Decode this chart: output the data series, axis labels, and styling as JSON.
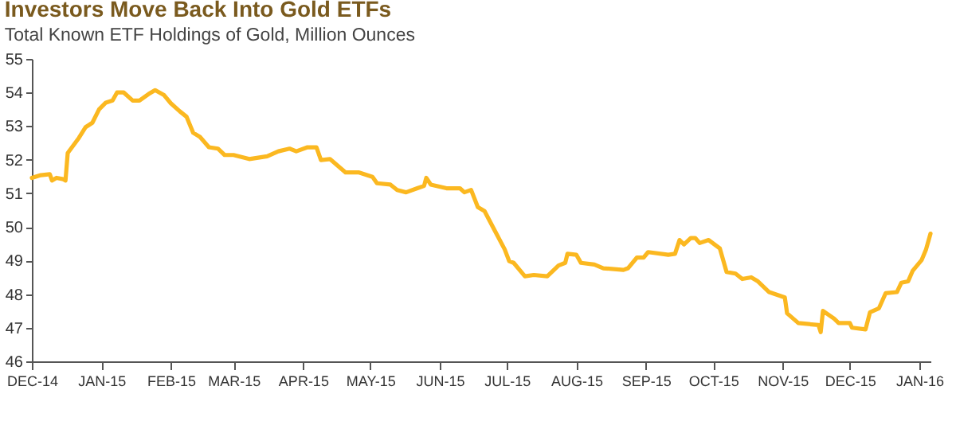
{
  "chart_data": {
    "type": "line",
    "title": "Investors Move Back Into Gold ETFs",
    "subtitle": "Total Known ETF Holdings of Gold, Million Ounces",
    "x": [
      "2014-12-01",
      "2014-12-05",
      "2014-12-09",
      "2014-12-10",
      "2014-12-12",
      "2014-12-15",
      "2014-12-16",
      "2014-12-17",
      "2014-12-22",
      "2014-12-25",
      "2014-12-28",
      "2014-12-31",
      "2015-01-03",
      "2015-01-06",
      "2015-01-08",
      "2015-01-11",
      "2015-01-15",
      "2015-01-18",
      "2015-01-22",
      "2015-01-25",
      "2015-01-29",
      "2015-02-01",
      "2015-02-05",
      "2015-02-08",
      "2015-02-11",
      "2015-02-14",
      "2015-02-18",
      "2015-02-22",
      "2015-02-25",
      "2015-03-01",
      "2015-03-08",
      "2015-03-16",
      "2015-03-21",
      "2015-03-26",
      "2015-03-29",
      "2015-04-03",
      "2015-04-07",
      "2015-04-09",
      "2015-04-13",
      "2015-04-20",
      "2015-04-26",
      "2015-05-02",
      "2015-05-04",
      "2015-05-10",
      "2015-05-13",
      "2015-05-17",
      "2015-05-22",
      "2015-05-25",
      "2015-05-26",
      "2015-05-28",
      "2015-06-04",
      "2015-06-10",
      "2015-06-12",
      "2015-06-15",
      "2015-06-18",
      "2015-06-21",
      "2015-06-25",
      "2015-06-30",
      "2015-07-02",
      "2015-07-04",
      "2015-07-09",
      "2015-07-13",
      "2015-07-19",
      "2015-07-24",
      "2015-07-27",
      "2015-07-28",
      "2015-08-01",
      "2015-08-03",
      "2015-08-09",
      "2015-08-13",
      "2015-08-22",
      "2015-08-24",
      "2015-08-28",
      "2015-08-31",
      "2015-09-02",
      "2015-09-11",
      "2015-09-14",
      "2015-09-16",
      "2015-09-18",
      "2015-09-21",
      "2015-09-23",
      "2015-09-25",
      "2015-09-29",
      "2015-10-04",
      "2015-10-07",
      "2015-10-11",
      "2015-10-14",
      "2015-10-18",
      "2015-10-21",
      "2015-10-26",
      "2015-11-02",
      "2015-11-03",
      "2015-11-08",
      "2015-11-17",
      "2015-11-18",
      "2015-11-19",
      "2015-11-24",
      "2015-11-26",
      "2015-12-01",
      "2015-12-02",
      "2015-12-08",
      "2015-12-10",
      "2015-12-14",
      "2015-12-17",
      "2015-12-22",
      "2015-12-24",
      "2015-12-27",
      "2015-12-29",
      "2016-01-02",
      "2016-01-04",
      "2016-01-06"
    ],
    "series": [
      {
        "color": "#fbb820",
        "values": [
          51.46,
          51.54,
          51.57,
          51.38,
          51.46,
          51.42,
          51.38,
          52.2,
          52.65,
          52.97,
          53.1,
          53.5,
          53.7,
          53.76,
          54.0,
          54.0,
          53.76,
          53.76,
          53.95,
          54.07,
          53.92,
          53.68,
          53.44,
          53.28,
          52.8,
          52.68,
          52.37,
          52.33,
          52.14,
          52.14,
          52.02,
          52.1,
          52.25,
          52.33,
          52.25,
          52.37,
          52.37,
          51.99,
          52.02,
          51.62,
          51.62,
          51.49,
          51.3,
          51.26,
          51.1,
          51.03,
          51.15,
          51.22,
          51.46,
          51.26,
          51.15,
          51.15,
          51.03,
          51.1,
          50.59,
          50.47,
          49.96,
          49.33,
          48.98,
          48.93,
          48.53,
          48.57,
          48.53,
          48.85,
          48.93,
          49.2,
          49.17,
          48.93,
          48.88,
          48.77,
          48.72,
          48.77,
          49.09,
          49.09,
          49.25,
          49.17,
          49.2,
          49.61,
          49.48,
          49.67,
          49.67,
          49.52,
          49.61,
          49.36,
          48.66,
          48.61,
          48.45,
          48.5,
          48.38,
          48.06,
          47.9,
          47.43,
          47.14,
          47.08,
          46.87,
          47.5,
          47.27,
          47.14,
          47.14,
          47.0,
          46.95,
          47.46,
          47.58,
          48.03,
          48.06,
          48.34,
          48.38,
          48.69,
          49.01,
          49.33,
          49.8
        ]
      }
    ],
    "xlim": [
      "2014-12-01",
      "2016-01-06"
    ],
    "xticks": [
      {
        "value": "2014-12-01",
        "label": "DEC-14"
      },
      {
        "value": "2015-01-01",
        "label": "JAN-15"
      },
      {
        "value": "2015-02-01",
        "label": "FEB-15"
      },
      {
        "value": "2015-03-01",
        "label": "MAR-15"
      },
      {
        "value": "2015-04-01",
        "label": "APR-15"
      },
      {
        "value": "2015-05-01",
        "label": "MAY-15"
      },
      {
        "value": "2015-06-01",
        "label": "JUN-15"
      },
      {
        "value": "2015-07-01",
        "label": "JUL-15"
      },
      {
        "value": "2015-08-01",
        "label": "AUG-15"
      },
      {
        "value": "2015-09-01",
        "label": "SEP-15"
      },
      {
        "value": "2015-10-01",
        "label": "OCT-15"
      },
      {
        "value": "2015-11-01",
        "label": "NOV-15"
      },
      {
        "value": "2015-12-01",
        "label": "DEC-15"
      },
      {
        "value": "2016-01-01",
        "label": "JAN-16"
      }
    ],
    "ylim": [
      46,
      55
    ],
    "yticks": [
      46,
      47,
      48,
      49,
      50,
      51,
      52,
      53,
      54,
      55
    ],
    "grid": false,
    "marker": "none",
    "line_style": "solid"
  }
}
